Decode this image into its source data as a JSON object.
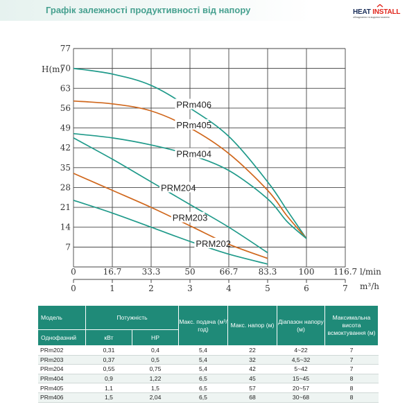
{
  "header": {
    "title": "Графік залежності продуктивності від напору",
    "logo": {
      "name_heat": "HEAT",
      "name_install": " INSTALL",
      "tagline": "обладнання та водопостачання"
    }
  },
  "colors": {
    "teal": "#1f9a8a",
    "orange": "#d0671c",
    "header_green": "#1f8a78",
    "title_green": "#46a08f"
  },
  "chart_data": {
    "type": "line",
    "ylabel": "H(m)",
    "xlabel_top": "l/min",
    "xlabel_bottom": "m³/h",
    "y_ticks": [
      "7",
      "14",
      "21",
      "28",
      "35",
      "42",
      "49",
      "56",
      "63",
      "70",
      "77"
    ],
    "x_ticks_lmin": [
      "0",
      "16.7",
      "33.3",
      "50",
      "66.7",
      "83.3",
      "100",
      "116.7"
    ],
    "x_ticks_m3h": [
      "0",
      "1",
      "2",
      "3",
      "4",
      "5",
      "6",
      "7"
    ],
    "ylim": [
      0,
      77
    ],
    "xlim": [
      0,
      7
    ],
    "grid": true,
    "series": [
      {
        "name": "PRm406",
        "color": "teal",
        "x": [
          0,
          1,
          2,
          3,
          4,
          5,
          5.5,
          6
        ],
        "y": [
          70,
          68,
          64,
          56,
          46,
          30,
          20,
          10
        ]
      },
      {
        "name": "PRm405",
        "color": "orange",
        "x": [
          0,
          1,
          2,
          3,
          4,
          5,
          5.5,
          6
        ],
        "y": [
          58.5,
          57.5,
          55,
          49,
          40,
          27,
          18,
          10
        ]
      },
      {
        "name": "PRm404",
        "color": "teal",
        "x": [
          0,
          1,
          2,
          3,
          4,
          5,
          5.5,
          6
        ],
        "y": [
          47,
          45.5,
          43,
          39.5,
          34,
          24,
          16,
          10
        ]
      },
      {
        "name": "PRM204",
        "color": "teal",
        "x": [
          0,
          1,
          2,
          3,
          4,
          5
        ],
        "y": [
          45.5,
          38,
          30,
          22,
          14,
          5
        ]
      },
      {
        "name": "PRM203",
        "color": "orange",
        "x": [
          0,
          1,
          2,
          3,
          4,
          5
        ],
        "y": [
          33,
          27,
          21,
          14.5,
          8,
          3
        ]
      },
      {
        "name": "PRM202",
        "color": "teal",
        "x": [
          0,
          1,
          2,
          3,
          4,
          5
        ],
        "y": [
          23.5,
          19,
          14,
          9,
          4.5,
          1
        ]
      }
    ]
  },
  "table": {
    "header_row1": [
      "Модель",
      "Потужність",
      "Макс. подача (м³/год)",
      "Макс. напор (м)",
      "Діапазон напору (м)",
      "Максимальна висота всмоктування (м)"
    ],
    "header_row2": [
      "Однофазний",
      "кВт",
      "HP"
    ],
    "rows": [
      [
        "PRm202",
        "0,31",
        "0,4",
        "5,4",
        "22",
        "4~22",
        "7"
      ],
      [
        "PRm203",
        "0,37",
        "0,5",
        "5,4",
        "32",
        "4,5~32",
        "7"
      ],
      [
        "PRm204",
        "0,55",
        "0,75",
        "5,4",
        "42",
        "5~42",
        "7"
      ],
      [
        "PRm404",
        "0,9",
        "1,22",
        "6,5",
        "45",
        "15~45",
        "8"
      ],
      [
        "PRm405",
        "1,1",
        "1,5",
        "6,5",
        "57",
        "20~57",
        "8"
      ],
      [
        "PRm406",
        "1,5",
        "2,04",
        "6,5",
        "68",
        "30~68",
        "8"
      ]
    ]
  }
}
